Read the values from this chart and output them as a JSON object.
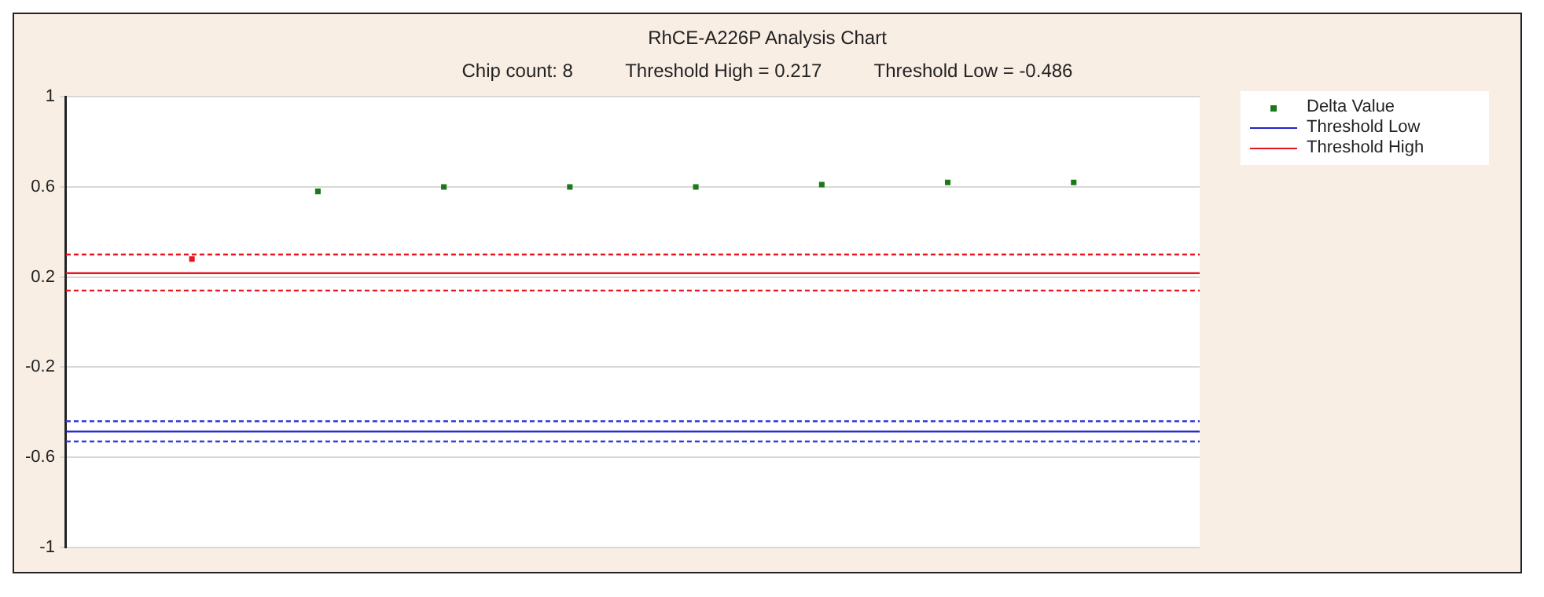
{
  "chart_data": {
    "type": "scatter",
    "title": "RhCE-A226P Analysis Chart",
    "subtitle": "Chip count: 8          Threshold High = 0.217          Threshold Low = -0.486",
    "categories": [
      null,
      null,
      null,
      null,
      null,
      null,
      null,
      null
    ],
    "series": [
      {
        "name": "Delta Value",
        "color": "#1a7a1a",
        "colors": [
          "#e8141e",
          "#1a7a1a",
          "#1a7a1a",
          "#1a7a1a",
          "#1a7a1a",
          "#1a7a1a",
          "#1a7a1a",
          "#1a7a1a"
        ],
        "values": [
          0.28,
          0.58,
          0.6,
          0.6,
          0.6,
          0.61,
          0.62,
          0.62
        ]
      }
    ],
    "ref_lines": [
      {
        "axis": "y",
        "value": -0.486,
        "label": "Threshold Low",
        "color": "#2222cc",
        "line_style": "solid"
      },
      {
        "axis": "y",
        "value": 0.217,
        "label": "Threshold High",
        "color": "#e8141e",
        "line_style": "solid"
      },
      {
        "axis": "y",
        "value": -0.44,
        "color": "#3a3ae0",
        "line_style": "dashed"
      },
      {
        "axis": "y",
        "value": -0.53,
        "color": "#3a3ae0",
        "line_style": "dashed"
      },
      {
        "axis": "y",
        "value": 0.3,
        "color": "#e8141e",
        "line_style": "dashed"
      },
      {
        "axis": "y",
        "value": 0.14,
        "color": "#e8141e",
        "line_style": "dashed"
      }
    ],
    "ylim": [
      -1,
      1
    ],
    "yticks": [
      -1,
      -0.6,
      -0.2,
      0.2,
      0.6,
      1
    ],
    "grid": "y",
    "legend": "top right",
    "marker": "square",
    "tick_labels": "y"
  }
}
